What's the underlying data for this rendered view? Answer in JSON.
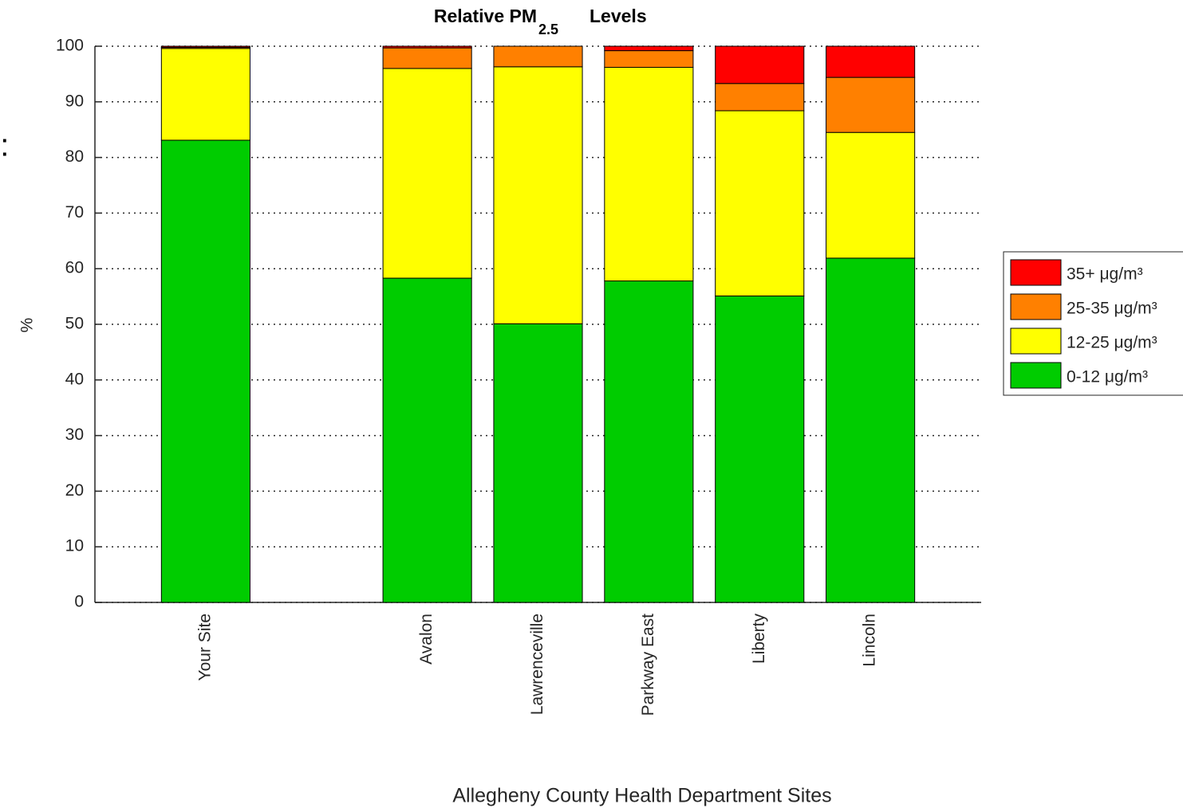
{
  "chart_data": {
    "type": "stacked_bar",
    "title": [
      "Relative PM",
      "2.5",
      "Levels"
    ],
    "annotation": "e:",
    "x_label": "Allegheny County Health Department Sites",
    "y_label": "%",
    "categories": [
      "Your Site",
      null,
      "Avalon",
      "Lawrenceville",
      "Parkway East",
      "Liberty",
      "Lincoln"
    ],
    "series": [
      {
        "name": "0-12 μg/m³",
        "color": "#00cc00",
        "values": [
          83.1,
          null,
          58.3,
          50.1,
          57.8,
          55.1,
          61.9
        ]
      },
      {
        "name": "12-25 μg/m³",
        "color": "#ffff00",
        "values": [
          16.5,
          null,
          37.7,
          46.2,
          38.4,
          33.3,
          22.6
        ]
      },
      {
        "name": "25-35 μg/m³",
        "color": "#ff8000",
        "values": [
          0.2,
          null,
          3.7,
          3.7,
          3.0,
          4.9,
          9.9
        ]
      },
      {
        "name": "35+ μg/m³",
        "color": "#ff0000",
        "values": [
          0.2,
          null,
          0.3,
          0,
          0.8,
          6.7,
          5.6
        ]
      }
    ],
    "ylim": [
      0,
      100
    ],
    "yticks": [
      0,
      10,
      20,
      30,
      40,
      50,
      60,
      70,
      80,
      90,
      100
    ],
    "grid": true
  }
}
